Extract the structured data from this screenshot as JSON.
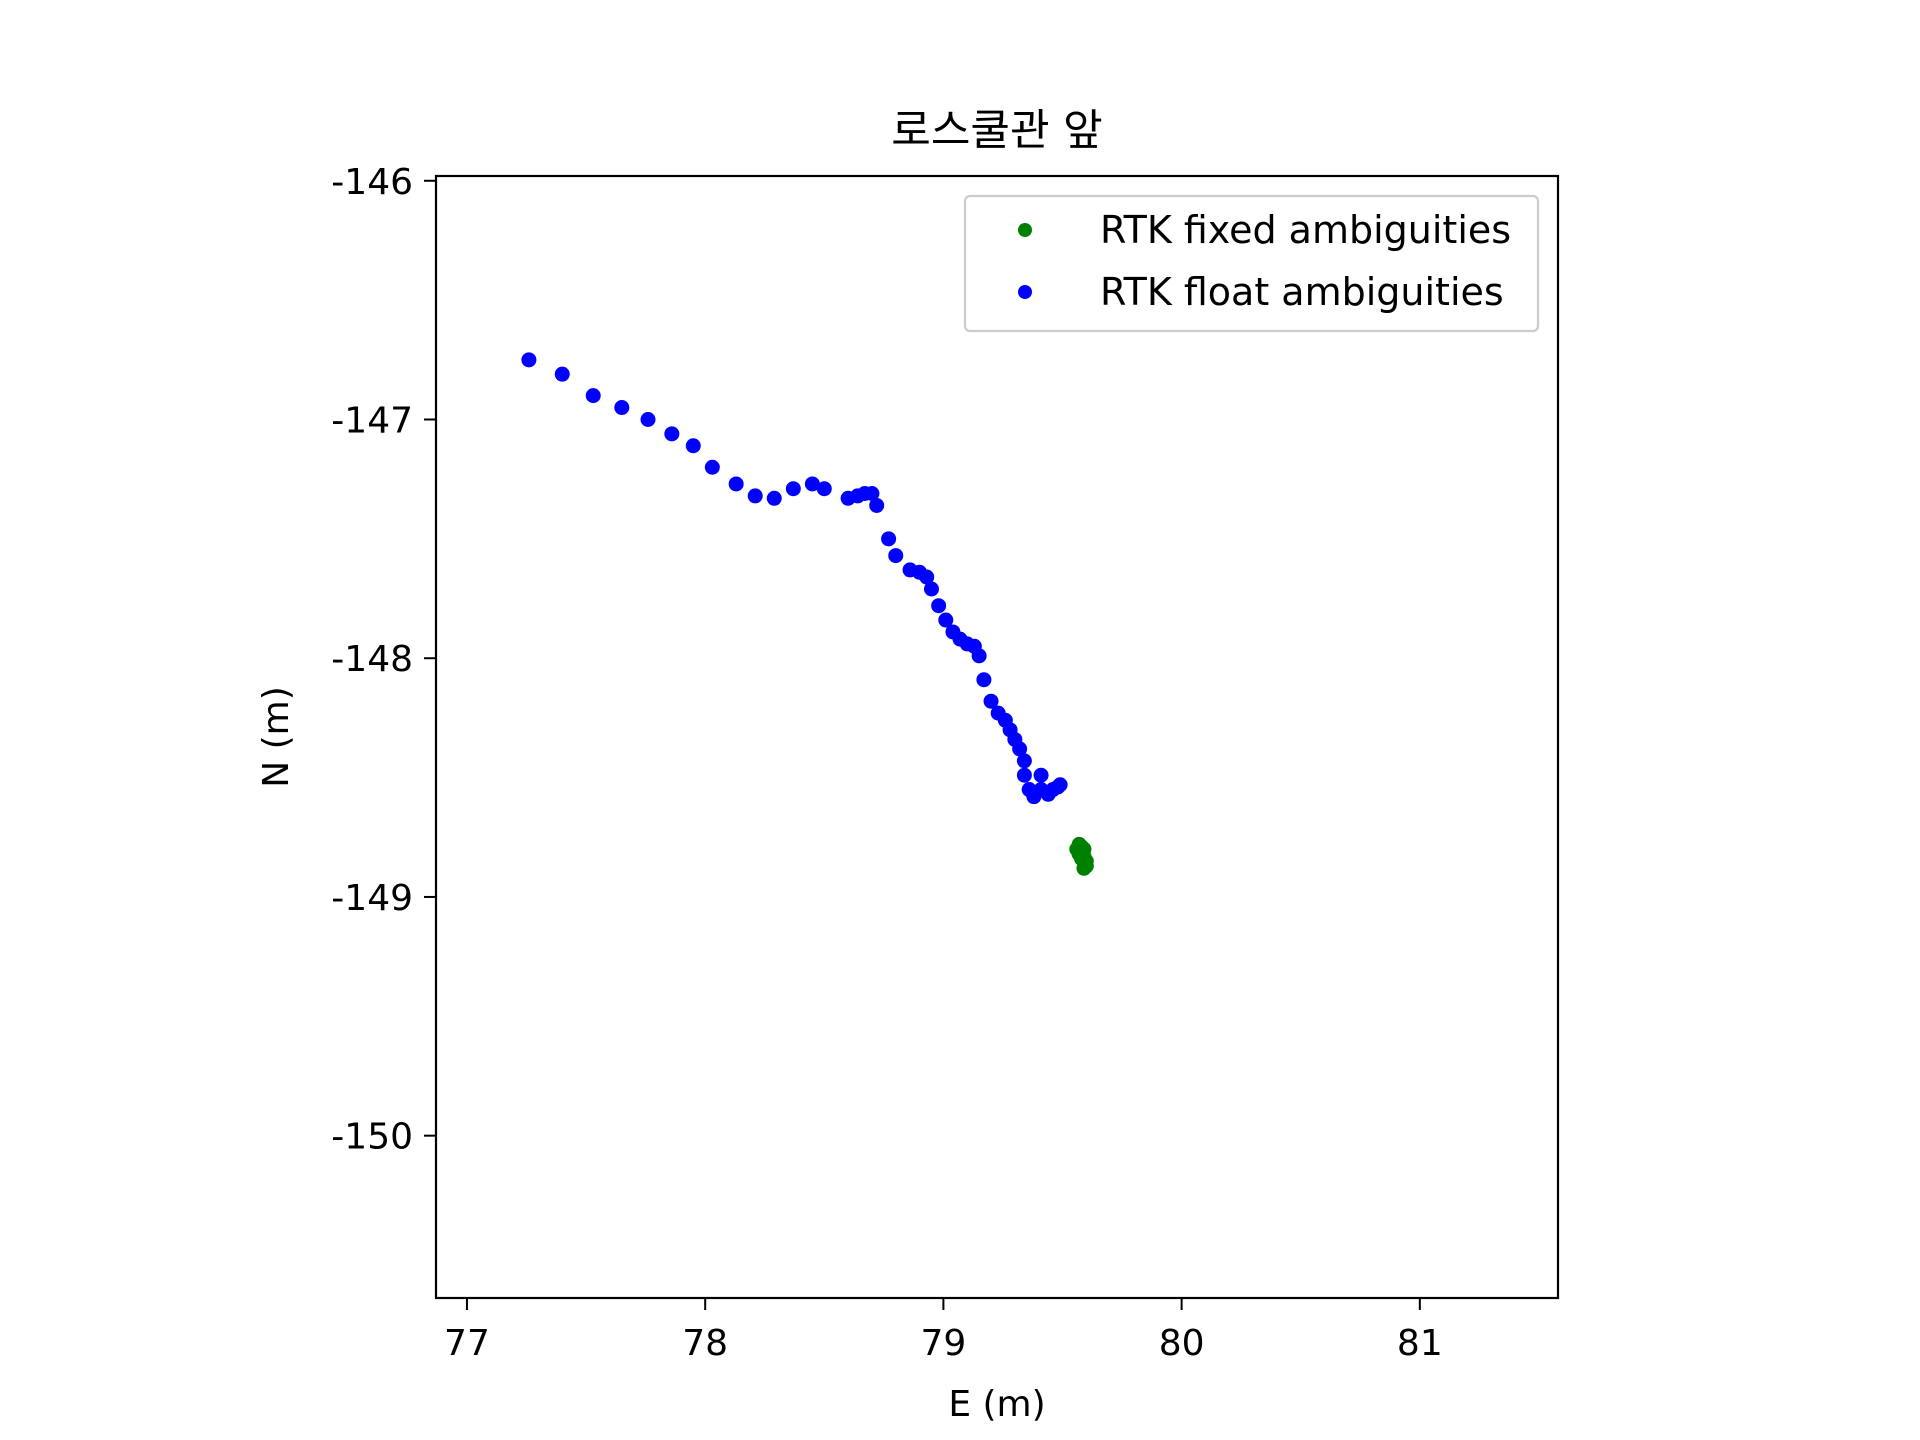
{
  "chart_data": {
    "type": "scatter",
    "title": "로스쿨관 앞",
    "xlabel": "E (m)",
    "ylabel": "N (m)",
    "xlim": [
      76.87,
      81.58
    ],
    "ylim": [
      -150.68,
      -145.98
    ],
    "x_ticks": [
      77,
      78,
      79,
      80,
      81
    ],
    "y_ticks": [
      -146,
      -147,
      -148,
      -149,
      -150
    ],
    "x_tick_labels": [
      "77",
      "78",
      "79",
      "80",
      "81"
    ],
    "y_tick_labels": [
      "-146",
      "-147",
      "-148",
      "-149",
      "-150"
    ],
    "grid": false,
    "legend_position": "top-right",
    "series": [
      {
        "name": "RTK fixed ambiguities",
        "color": "#008000",
        "points": [
          [
            79.56,
            -148.8
          ],
          [
            79.58,
            -148.79
          ],
          [
            79.57,
            -148.82
          ],
          [
            79.59,
            -148.8
          ],
          [
            79.59,
            -148.83
          ],
          [
            79.6,
            -148.85
          ],
          [
            79.58,
            -148.84
          ],
          [
            79.6,
            -148.87
          ],
          [
            79.59,
            -148.88
          ],
          [
            79.57,
            -148.78
          ]
        ]
      },
      {
        "name": "RTK float ambiguities",
        "color": "#0000ff",
        "points": [
          [
            77.26,
            -146.75
          ],
          [
            77.4,
            -146.81
          ],
          [
            77.53,
            -146.9
          ],
          [
            77.65,
            -146.95
          ],
          [
            77.76,
            -147.0
          ],
          [
            77.86,
            -147.06
          ],
          [
            77.95,
            -147.11
          ],
          [
            78.03,
            -147.2
          ],
          [
            78.13,
            -147.27
          ],
          [
            78.21,
            -147.32
          ],
          [
            78.29,
            -147.33
          ],
          [
            78.37,
            -147.29
          ],
          [
            78.45,
            -147.27
          ],
          [
            78.5,
            -147.29
          ],
          [
            78.6,
            -147.33
          ],
          [
            78.64,
            -147.32
          ],
          [
            78.67,
            -147.31
          ],
          [
            78.7,
            -147.31
          ],
          [
            78.72,
            -147.36
          ],
          [
            78.77,
            -147.5
          ],
          [
            78.8,
            -147.57
          ],
          [
            78.86,
            -147.63
          ],
          [
            78.9,
            -147.64
          ],
          [
            78.93,
            -147.66
          ],
          [
            78.95,
            -147.71
          ],
          [
            78.98,
            -147.78
          ],
          [
            79.01,
            -147.84
          ],
          [
            79.04,
            -147.89
          ],
          [
            79.07,
            -147.92
          ],
          [
            79.1,
            -147.94
          ],
          [
            79.13,
            -147.95
          ],
          [
            79.15,
            -147.99
          ],
          [
            79.17,
            -148.09
          ],
          [
            79.2,
            -148.18
          ],
          [
            79.23,
            -148.23
          ],
          [
            79.26,
            -148.26
          ],
          [
            79.28,
            -148.3
          ],
          [
            79.3,
            -148.34
          ],
          [
            79.32,
            -148.38
          ],
          [
            79.34,
            -148.43
          ],
          [
            79.34,
            -148.49
          ],
          [
            79.36,
            -148.55
          ],
          [
            79.38,
            -148.58
          ],
          [
            79.41,
            -148.55
          ],
          [
            79.41,
            -148.49
          ],
          [
            79.44,
            -148.57
          ],
          [
            79.46,
            -148.55
          ],
          [
            79.48,
            -148.54
          ],
          [
            79.49,
            -148.53
          ]
        ]
      }
    ]
  }
}
